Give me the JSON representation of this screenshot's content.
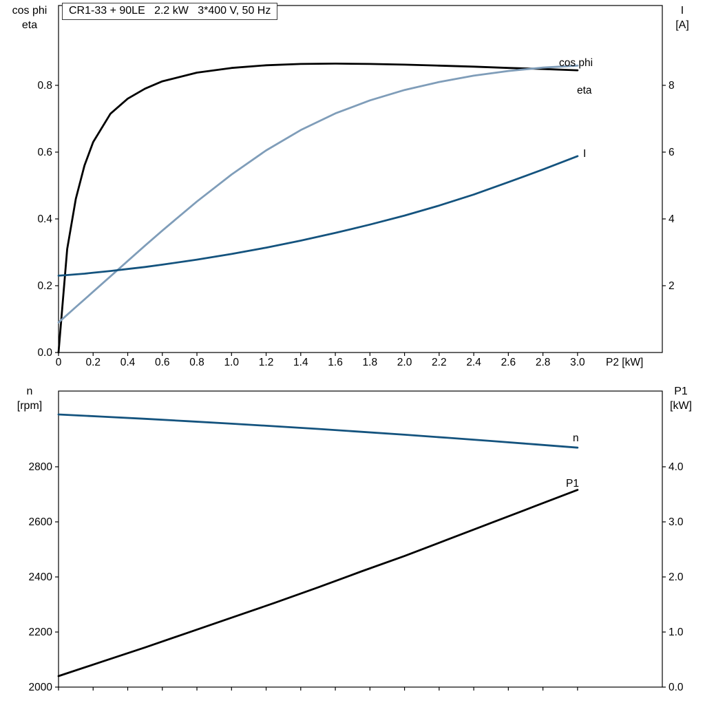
{
  "page": {
    "background": "#ffffff"
  },
  "colors": {
    "black": "#000000",
    "dark_blue": "#14537e",
    "light_blue": "#7f9db9",
    "axis": "#000000"
  },
  "title_box": {
    "text": "CR1-33 + 90LE   2.2 kW   3*400 V, 50 Hz"
  },
  "axis_corner_labels": {
    "top_left": [
      "cos phi",
      "eta"
    ],
    "top_right": [
      "I",
      "[A]"
    ],
    "bottom_left": [
      "n",
      "[rpm]"
    ],
    "bottom_right": [
      "P1",
      "[kW]"
    ]
  },
  "chart_data": [
    {
      "type": "line",
      "title": "CR1-33 + 90LE   2.2 kW   3*400 V, 50 Hz",
      "xlabel": "P2 [kW]",
      "grid": false,
      "legend_position": "inline-labels",
      "xlim": [
        0,
        3.49
      ],
      "x_ticks": [
        0,
        0.2,
        0.4,
        0.6,
        0.8,
        1.0,
        1.2,
        1.4,
        1.6,
        1.8,
        2.0,
        2.2,
        2.4,
        2.6,
        2.8,
        3.0
      ],
      "x_tick_labels": [
        "0",
        "0.2",
        "0.4",
        "0.6",
        "0.8",
        "1.0",
        "1.2",
        "1.4",
        "1.6",
        "1.8",
        "2.0",
        "2.2",
        "2.4",
        "2.6",
        "2.8",
        "3.0"
      ],
      "left_axis_title": "cos phi / eta",
      "left_ylim": [
        0,
        1.039
      ],
      "left_ticks": [
        0,
        0.2,
        0.4,
        0.6,
        0.8
      ],
      "left_tick_labels": [
        "0.0",
        "0.2",
        "0.4",
        "0.6",
        "0.8"
      ],
      "right_axis_title": "I [A]",
      "right_ylim": [
        0,
        10.39
      ],
      "right_ticks": [
        2,
        4,
        6,
        8
      ],
      "right_tick_labels": [
        "2",
        "4",
        "6",
        "8"
      ],
      "series": [
        {
          "name": "eta",
          "axis": "left",
          "color": "#000000",
          "label_pos": [
            838,
            136
          ],
          "x": [
            0,
            0.05,
            0.1,
            0.15,
            0.2,
            0.3,
            0.4,
            0.5,
            0.6,
            0.8,
            1.0,
            1.2,
            1.4,
            1.6,
            1.8,
            2.0,
            2.2,
            2.4,
            2.6,
            2.8,
            3.0
          ],
          "y": [
            0,
            0.31,
            0.46,
            0.56,
            0.63,
            0.715,
            0.76,
            0.79,
            0.812,
            0.838,
            0.852,
            0.86,
            0.864,
            0.865,
            0.864,
            0.862,
            0.859,
            0.856,
            0.852,
            0.849,
            0.845
          ]
        },
        {
          "name": "cos phi",
          "axis": "left",
          "color": "#7f9db9",
          "label_pos": [
            812,
            96
          ],
          "x": [
            0,
            0.05,
            0.1,
            0.15,
            0.2,
            0.3,
            0.4,
            0.5,
            0.6,
            0.8,
            1.0,
            1.2,
            1.4,
            1.6,
            1.8,
            2.0,
            2.2,
            2.4,
            2.6,
            2.8,
            3.0
          ],
          "y": [
            0.09,
            0.113,
            0.136,
            0.159,
            0.182,
            0.228,
            0.274,
            0.32,
            0.365,
            0.452,
            0.533,
            0.605,
            0.666,
            0.716,
            0.755,
            0.786,
            0.81,
            0.829,
            0.843,
            0.853,
            0.859
          ]
        },
        {
          "name": "I",
          "axis": "right",
          "color": "#14537e",
          "label_pos": [
            847,
            228
          ],
          "x": [
            0,
            0.05,
            0.1,
            0.15,
            0.2,
            0.3,
            0.4,
            0.5,
            0.6,
            0.8,
            1.0,
            1.2,
            1.4,
            1.6,
            1.8,
            2.0,
            2.2,
            2.4,
            2.6,
            2.8,
            3.0
          ],
          "y": [
            2.3,
            2.32,
            2.34,
            2.36,
            2.39,
            2.44,
            2.5,
            2.56,
            2.63,
            2.78,
            2.95,
            3.14,
            3.35,
            3.58,
            3.83,
            4.1,
            4.4,
            4.73,
            5.1,
            5.48,
            5.88
          ]
        }
      ]
    },
    {
      "type": "line",
      "title": "",
      "xlabel": "",
      "grid": false,
      "legend_position": "inline-labels",
      "xlim": [
        0,
        3.49
      ],
      "x_ticks": [
        0,
        0.2,
        0.4,
        0.6,
        0.8,
        1.0,
        1.2,
        1.4,
        1.6,
        1.8,
        2.0,
        2.2,
        2.4,
        2.6,
        2.8,
        3.0
      ],
      "x_tick_labels": [],
      "left_axis_title": "n [rpm]",
      "left_ylim": [
        2000,
        3075
      ],
      "left_ticks": [
        2000,
        2200,
        2400,
        2600,
        2800
      ],
      "left_tick_labels": [
        "2000",
        "2200",
        "2400",
        "2600",
        "2800"
      ],
      "right_axis_title": "P1 [kW]",
      "right_ylim": [
        0,
        5.375
      ],
      "right_ticks": [
        0,
        1,
        2,
        3,
        4
      ],
      "right_tick_labels": [
        "0.0",
        "1.0",
        "2.0",
        "3.0",
        "4.0"
      ],
      "series": [
        {
          "name": "n",
          "axis": "left",
          "color": "#14537e",
          "label_pos": [
            832,
            641
          ],
          "x": [
            0,
            0.25,
            0.5,
            0.75,
            1.0,
            1.25,
            1.5,
            1.75,
            2.0,
            2.25,
            2.5,
            2.75,
            3.0
          ],
          "y": [
            2990,
            2982.3,
            2974.2,
            2965.6,
            2956.6,
            2947.2,
            2937.4,
            2927.1,
            2916.4,
            2905.3,
            2893.8,
            2881.8,
            2869.4
          ]
        },
        {
          "name": "P1",
          "axis": "right",
          "color": "#000000",
          "label_pos": [
            822,
            707
          ],
          "x": [
            0,
            0.25,
            0.5,
            0.75,
            1.0,
            1.25,
            1.5,
            1.75,
            2.0,
            2.25,
            2.5,
            2.75,
            3.0
          ],
          "y": [
            0.2,
            0.46,
            0.72,
            0.99,
            1.26,
            1.53,
            1.81,
            2.1,
            2.38,
            2.68,
            2.98,
            3.28,
            3.58
          ]
        }
      ]
    }
  ]
}
